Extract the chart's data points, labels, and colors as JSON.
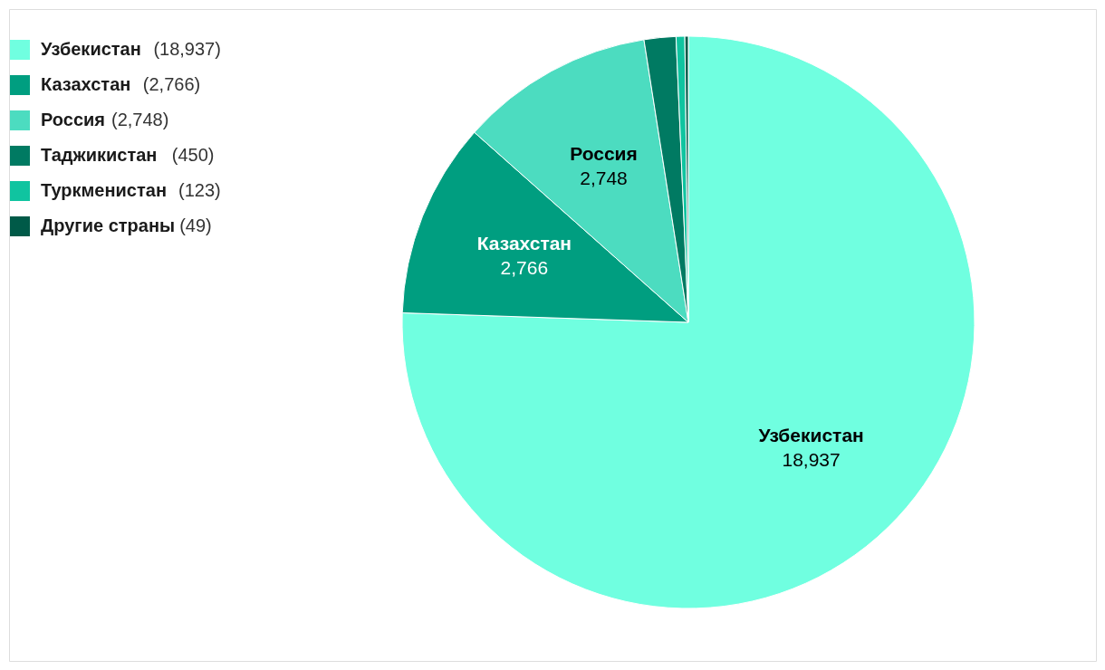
{
  "chart_data": {
    "type": "pie",
    "categories": [
      "Узбекистан",
      "Казахстан",
      "Россия",
      "Таджикистан",
      "Туркменистан",
      "Другие страны"
    ],
    "values": [
      18937,
      2766,
      2748,
      450,
      123,
      49
    ],
    "colors": [
      "#70ffe0",
      "#009e80",
      "#4cdcc0",
      "#007a62",
      "#10c4a0",
      "#005a48"
    ],
    "value_labels": [
      "18,937",
      "2,766",
      "2,748",
      null,
      null,
      null
    ],
    "annotations": [
      "(18,937)",
      "(2,766)",
      "(2,748)",
      "(450)",
      "(123)",
      "(49)"
    ],
    "legend": "top left"
  }
}
